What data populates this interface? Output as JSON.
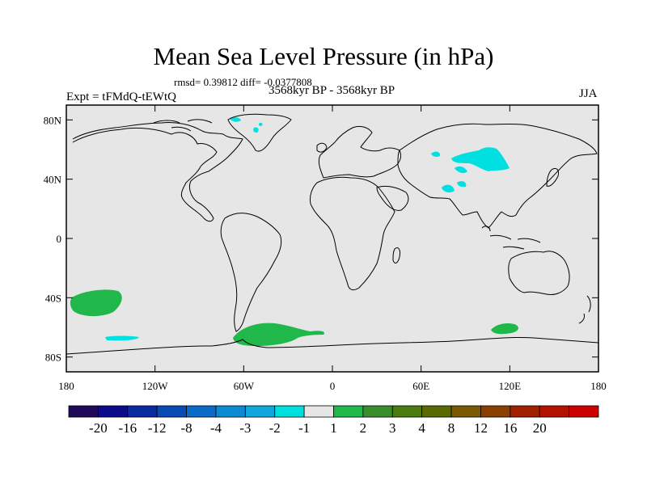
{
  "header": {
    "title": "Mean Sea Level Pressure (in hPa)",
    "subtitle": "rmsd= 0.39812 diff= -0.0377808",
    "center_label": "3568kyr BP - 3568kyr BP",
    "left_label": "Expt = tFMdQ-tEWtQ",
    "right_label": "JJA"
  },
  "map": {
    "background_color": "#e6e6e6",
    "coast_color": "#000000",
    "lat_ticks": [
      "80N",
      "40N",
      "0",
      "40S",
      "80S"
    ],
    "lat_values": [
      80,
      40,
      0,
      -40,
      -80
    ],
    "lon_ticks": [
      "180",
      "120W",
      "60W",
      "0",
      "60E",
      "120E",
      "180"
    ],
    "lon_values": [
      -180,
      -120,
      -60,
      0,
      60,
      120,
      180
    ],
    "anomalies": [
      {
        "region": "north-pacific-south",
        "color": "#21b84b",
        "class": "1 to 2"
      },
      {
        "region": "antarctic-peninsula",
        "color": "#21b84b",
        "class": "1 to 2"
      },
      {
        "region": "east-antarctic-coast",
        "color": "#21b84b",
        "class": "1 to 2"
      },
      {
        "region": "central-asia",
        "color": "#00e0e0",
        "class": "-2 to -1"
      },
      {
        "region": "tibet",
        "color": "#00e0e0",
        "class": "-2 to -1"
      },
      {
        "region": "greenland",
        "color": "#00e0e0",
        "class": "-2 to -1"
      },
      {
        "region": "south-pacific-small",
        "color": "#00e0e0",
        "class": "-2 to -1"
      }
    ]
  },
  "colorbar": {
    "colors": [
      "#1f0a5a",
      "#0a0a8a",
      "#0a2aa0",
      "#0a4ab4",
      "#0a6ac8",
      "#0a8ad2",
      "#10a8dc",
      "#00dede",
      "#e6e6e6",
      "#21b84b",
      "#3b8c2a",
      "#4a7a10",
      "#5a6a00",
      "#7a5a00",
      "#8a4000",
      "#a02000",
      "#b41000",
      "#cc0000"
    ],
    "labels": [
      "-20",
      "-16",
      "-12",
      "-8",
      "-4",
      "-3",
      "-2",
      "-1",
      "1",
      "2",
      "3",
      "4",
      "8",
      "12",
      "16",
      "20"
    ]
  }
}
